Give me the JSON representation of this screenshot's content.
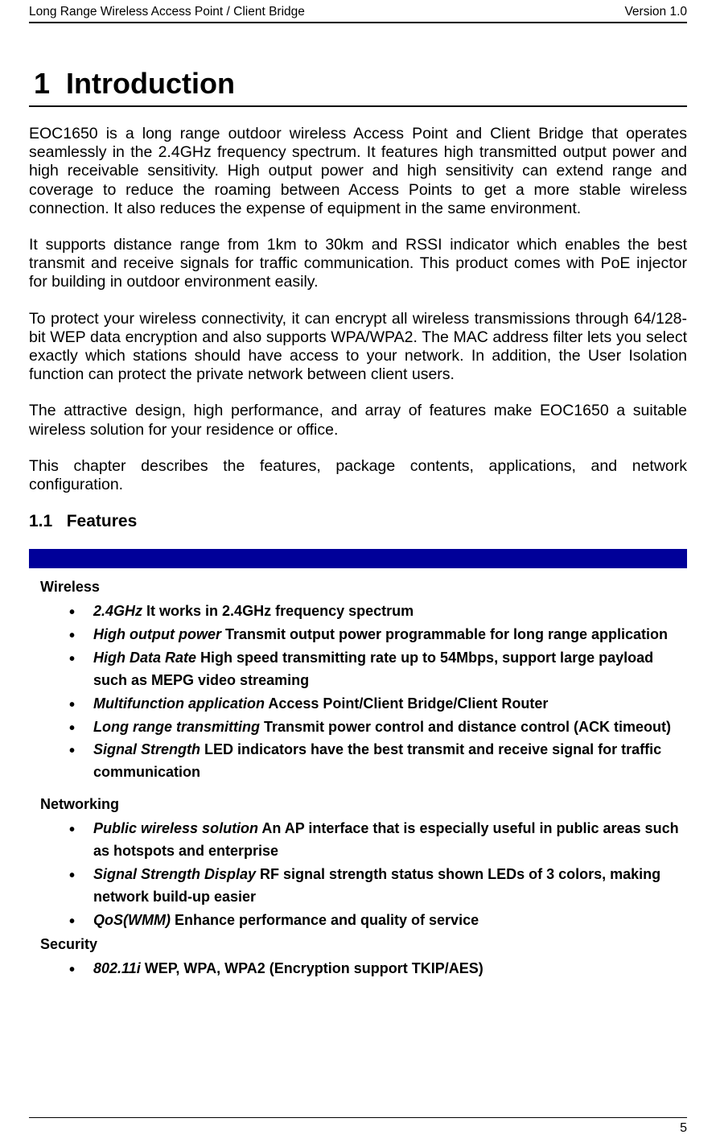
{
  "header": {
    "left": "Long Range Wireless Access Point / Client Bridge",
    "right": "Version 1.0"
  },
  "chapter": {
    "number": "1",
    "title": "Introduction"
  },
  "paragraphs": [
    "EOC1650 is a long range outdoor wireless Access Point and Client Bridge that operates seamlessly in the 2.4GHz frequency spectrum. It features high transmitted output power and high receivable sensitivity. High output power and high sensitivity can extend range and coverage to reduce the roaming between Access Points to get a more stable wireless connection. It also reduces the expense of equipment in the same environment.",
    "It supports distance range from 1km to 30km and RSSI indicator which enables the best transmit and receive signals for traffic communication. This product comes with PoE injector for building in outdoor environment easily.",
    "To protect your wireless connectivity, it can encrypt all wireless transmissions through 64/128-bit WEP data encryption and also supports WPA/WPA2. The MAC address filter lets you select exactly which stations should have access to your network. In addition, the User Isolation function can protect the private network between client users.",
    "The attractive design, high performance, and array of features make EOC1650 a suitable wireless solution for your residence or office.",
    "This chapter describes the features, package contents, applications, and network configuration."
  ],
  "section": {
    "number": "1.1",
    "title": "Features"
  },
  "bar_color": "#000099",
  "features": {
    "categories": [
      {
        "name": "Wireless",
        "items": [
          {
            "term": "2.4GHz",
            "desc": " It works in 2.4GHz frequency spectrum"
          },
          {
            "term": "High output power",
            "desc": "  Transmit output power programmable for long range application"
          },
          {
            "term": "High Data Rate",
            "desc": "  High speed transmitting rate up to 54Mbps, support large payload such as MEPG video streaming"
          },
          {
            "term": "Multifunction application",
            "desc": "  Access Point/Client Bridge/Client Router"
          },
          {
            "term": "Long range transmitting",
            "desc": " Transmit power control and distance control (ACK timeout)"
          },
          {
            "term": "Signal Strength",
            "desc": "  LED indicators have the best transmit and receive signal for traffic communication"
          }
        ]
      },
      {
        "name": "Networking",
        "items": [
          {
            "term": "Public wireless solution",
            "desc": "  An AP interface that is especially useful in public areas such as hotspots and enterprise"
          },
          {
            "term": "Signal Strength Display",
            "desc": "  RF signal strength status shown LEDs of 3 colors, making network build-up easier"
          },
          {
            "term": "QoS(WMM)",
            "desc": "  Enhance performance and quality of service"
          }
        ]
      },
      {
        "name": "Security",
        "items": [
          {
            "term": "802.11i",
            "desc": "  WEP, WPA, WPA2 (Encryption support TKIP/AES)"
          }
        ]
      }
    ]
  },
  "footer": {
    "page_number": "5"
  }
}
